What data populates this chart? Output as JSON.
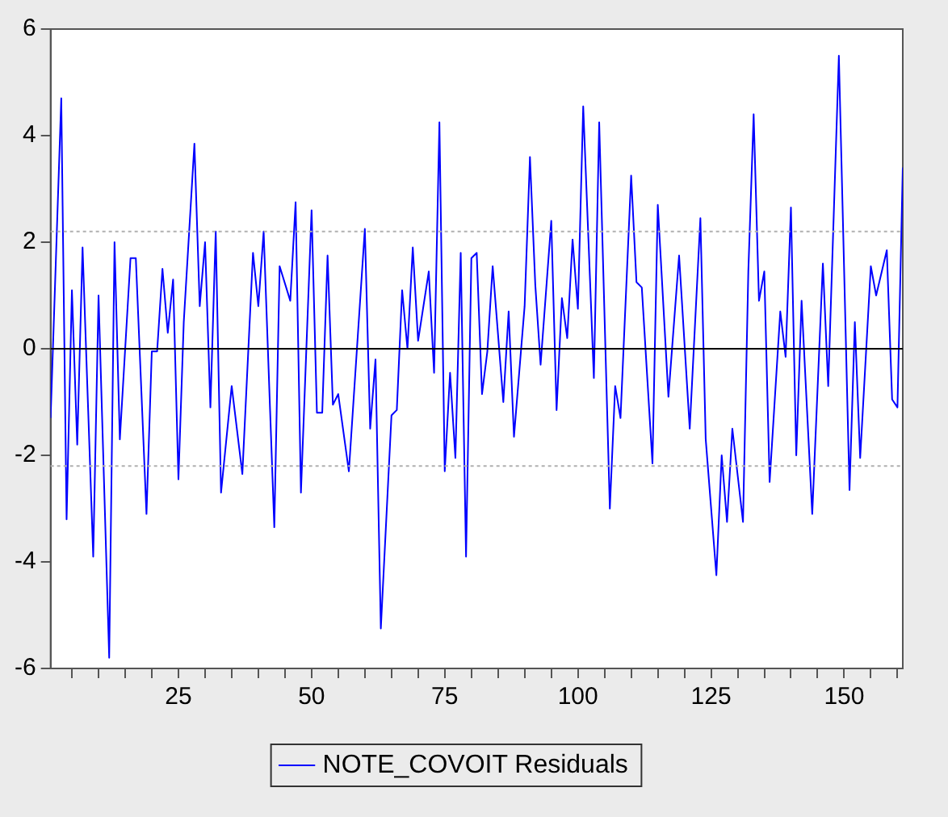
{
  "chart_data": {
    "type": "line",
    "xlim": [
      1,
      161
    ],
    "ylim": [
      -6,
      6
    ],
    "xticks": [
      {
        "value": 5,
        "label": null
      },
      {
        "value": 10,
        "label": null
      },
      {
        "value": 15,
        "label": null
      },
      {
        "value": 20,
        "label": null
      },
      25,
      {
        "value": 30,
        "label": null
      },
      {
        "value": 35,
        "label": null
      },
      {
        "value": 40,
        "label": null
      },
      {
        "value": 45,
        "label": null
      },
      50,
      {
        "value": 55,
        "label": null
      },
      {
        "value": 60,
        "label": null
      },
      {
        "value": 65,
        "label": null
      },
      {
        "value": 70,
        "label": null
      },
      75,
      {
        "value": 80,
        "label": null
      },
      {
        "value": 85,
        "label": null
      },
      {
        "value": 90,
        "label": null
      },
      {
        "value": 95,
        "label": null
      },
      100,
      {
        "value": 105,
        "label": null
      },
      {
        "value": 110,
        "label": null
      },
      {
        "value": 115,
        "label": null
      },
      {
        "value": 120,
        "label": null
      },
      125,
      {
        "value": 130,
        "label": null
      },
      {
        "value": 135,
        "label": null
      },
      {
        "value": 140,
        "label": null
      },
      {
        "value": 145,
        "label": null
      },
      150,
      {
        "value": 155,
        "label": null
      },
      {
        "value": 160,
        "label": null
      }
    ],
    "yticks": [
      -6,
      -4,
      -2,
      0,
      2,
      4,
      6
    ],
    "series": [
      {
        "name": "NOTE_COVOIT Residuals",
        "color": "#0000ff",
        "x": [
          1,
          3,
          4,
          5,
          6,
          7,
          9,
          10,
          12,
          13,
          14,
          16,
          17,
          19,
          20,
          21,
          22,
          23,
          24,
          25,
          26,
          28,
          29,
          30,
          31,
          32,
          33,
          35,
          37,
          39,
          40,
          41,
          43,
          44,
          46,
          47,
          48,
          50,
          51,
          52,
          53,
          54,
          55,
          57,
          60,
          61,
          62,
          63,
          65,
          66,
          67,
          68,
          69,
          70,
          72,
          73,
          74,
          75,
          76,
          77,
          78,
          79,
          80,
          81,
          82,
          83,
          84,
          86,
          87,
          88,
          90,
          91,
          92,
          93,
          95,
          96,
          97,
          98,
          99,
          100,
          101,
          103,
          104,
          106,
          107,
          108,
          110,
          111,
          112,
          114,
          115,
          117,
          119,
          121,
          123,
          124,
          126,
          127,
          128,
          129,
          131,
          132,
          133,
          134,
          135,
          136,
          138,
          139,
          140,
          141,
          142,
          144,
          146,
          147,
          149,
          151,
          152,
          153,
          155,
          156,
          158,
          159,
          160,
          161
        ],
        "values": [
          -1.3,
          4.7,
          -3.2,
          1.1,
          -1.8,
          1.9,
          -3.9,
          1.0,
          -5.8,
          2.0,
          -1.7,
          1.7,
          1.7,
          -3.1,
          -0.05,
          -0.05,
          1.5,
          0.3,
          1.3,
          -2.45,
          0.5,
          3.85,
          0.8,
          2.0,
          -1.1,
          2.2,
          -2.7,
          -0.7,
          -2.35,
          1.8,
          0.8,
          2.2,
          -3.35,
          1.55,
          0.9,
          2.75,
          -2.7,
          2.6,
          -1.2,
          -1.2,
          1.75,
          -1.05,
          -0.85,
          -2.3,
          2.25,
          -1.5,
          -0.2,
          -5.25,
          -1.25,
          -1.15,
          1.1,
          0.0,
          1.9,
          0.15,
          1.45,
          -0.45,
          4.25,
          -2.3,
          -0.45,
          -2.05,
          1.8,
          -3.9,
          1.7,
          1.8,
          -0.85,
          -0.05,
          1.55,
          -1.0,
          0.7,
          -1.65,
          0.8,
          3.6,
          1.2,
          -0.3,
          2.4,
          -1.15,
          0.95,
          0.2,
          2.05,
          0.75,
          4.55,
          -0.55,
          4.25,
          -3.0,
          -0.7,
          -1.3,
          3.25,
          1.25,
          1.15,
          -2.15,
          2.7,
          -0.9,
          1.75,
          -1.5,
          2.45,
          -1.7,
          -4.25,
          -2.0,
          -3.25,
          -1.5,
          -3.25,
          1.45,
          4.4,
          0.9,
          1.45,
          -2.5,
          0.7,
          -0.15,
          2.65,
          -2.0,
          0.9,
          -3.1,
          1.6,
          -0.7,
          5.5,
          -2.65,
          0.5,
          -2.05,
          1.55,
          1.0,
          1.85,
          -0.95,
          -1.1,
          3.4
        ]
      }
    ],
    "ref_lines": [
      {
        "axis": "y",
        "value": 0,
        "color": "#000000",
        "line_style": "solid"
      },
      {
        "axis": "y",
        "value": 2.2,
        "color": "#b0b0b0",
        "line_style": "dotted"
      },
      {
        "axis": "y",
        "value": -2.2,
        "color": "#b0b0b0",
        "line_style": "dotted"
      }
    ],
    "grid": false,
    "legend": "bottom",
    "marker": "none",
    "line_style": "solid"
  }
}
